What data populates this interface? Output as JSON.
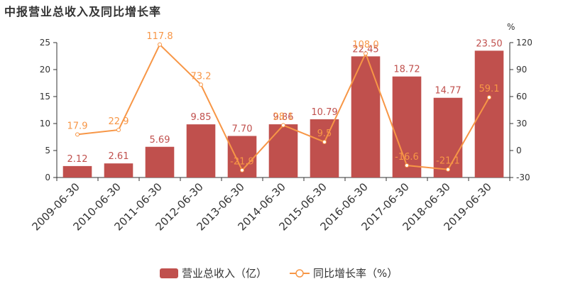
{
  "title": "中报营业总收入及同比增长率",
  "chart_data": {
    "type": "bar+line",
    "categories": [
      "2009-06-30",
      "2010-06-30",
      "2011-06-30",
      "2012-06-30",
      "2013-06-30",
      "2014-06-30",
      "2015-06-30",
      "2016-06-30",
      "2017-06-30",
      "2018-06-30",
      "2019-06-30"
    ],
    "series": [
      {
        "name": "营业总收入（亿）",
        "type": "bar",
        "axis": "left",
        "values": [
          2.12,
          2.61,
          5.69,
          9.85,
          7.7,
          9.86,
          10.79,
          22.45,
          18.72,
          14.77,
          23.5
        ],
        "labels": [
          "2.12",
          "2.61",
          "5.69",
          "9.85",
          "7.70",
          "9.86",
          "10.79",
          "22.45",
          "18.72",
          "14.77",
          "23.50"
        ]
      },
      {
        "name": "同比增长率（%）",
        "type": "line",
        "axis": "right",
        "values": [
          17.9,
          22.9,
          117.8,
          73.2,
          -21.9,
          28.1,
          9.5,
          108.0,
          -16.6,
          -21.1,
          59.1
        ],
        "labels": [
          "17.9",
          "22.9",
          "117.8",
          "73.2",
          "-21.9",
          "28.1",
          "9.5",
          "108.0",
          "-16.6",
          "-21.1",
          "59.1"
        ]
      }
    ],
    "y_left": {
      "ylim": [
        0,
        25
      ],
      "ticks": [
        0,
        5,
        10,
        15,
        20,
        25
      ]
    },
    "y_right": {
      "ylim": [
        -30,
        120
      ],
      "ticks": [
        -30,
        0,
        30,
        60,
        90,
        120
      ],
      "unit": "%"
    },
    "legend": {
      "position": "bottom",
      "items": [
        "营业总收入（亿）",
        "同比增长率（%）"
      ]
    },
    "colors": {
      "bar": "#c0504d",
      "line": "#f79646",
      "bar_label": "#c0504d",
      "line_label": "#f79646",
      "axis": "#333333"
    },
    "grid": false
  }
}
